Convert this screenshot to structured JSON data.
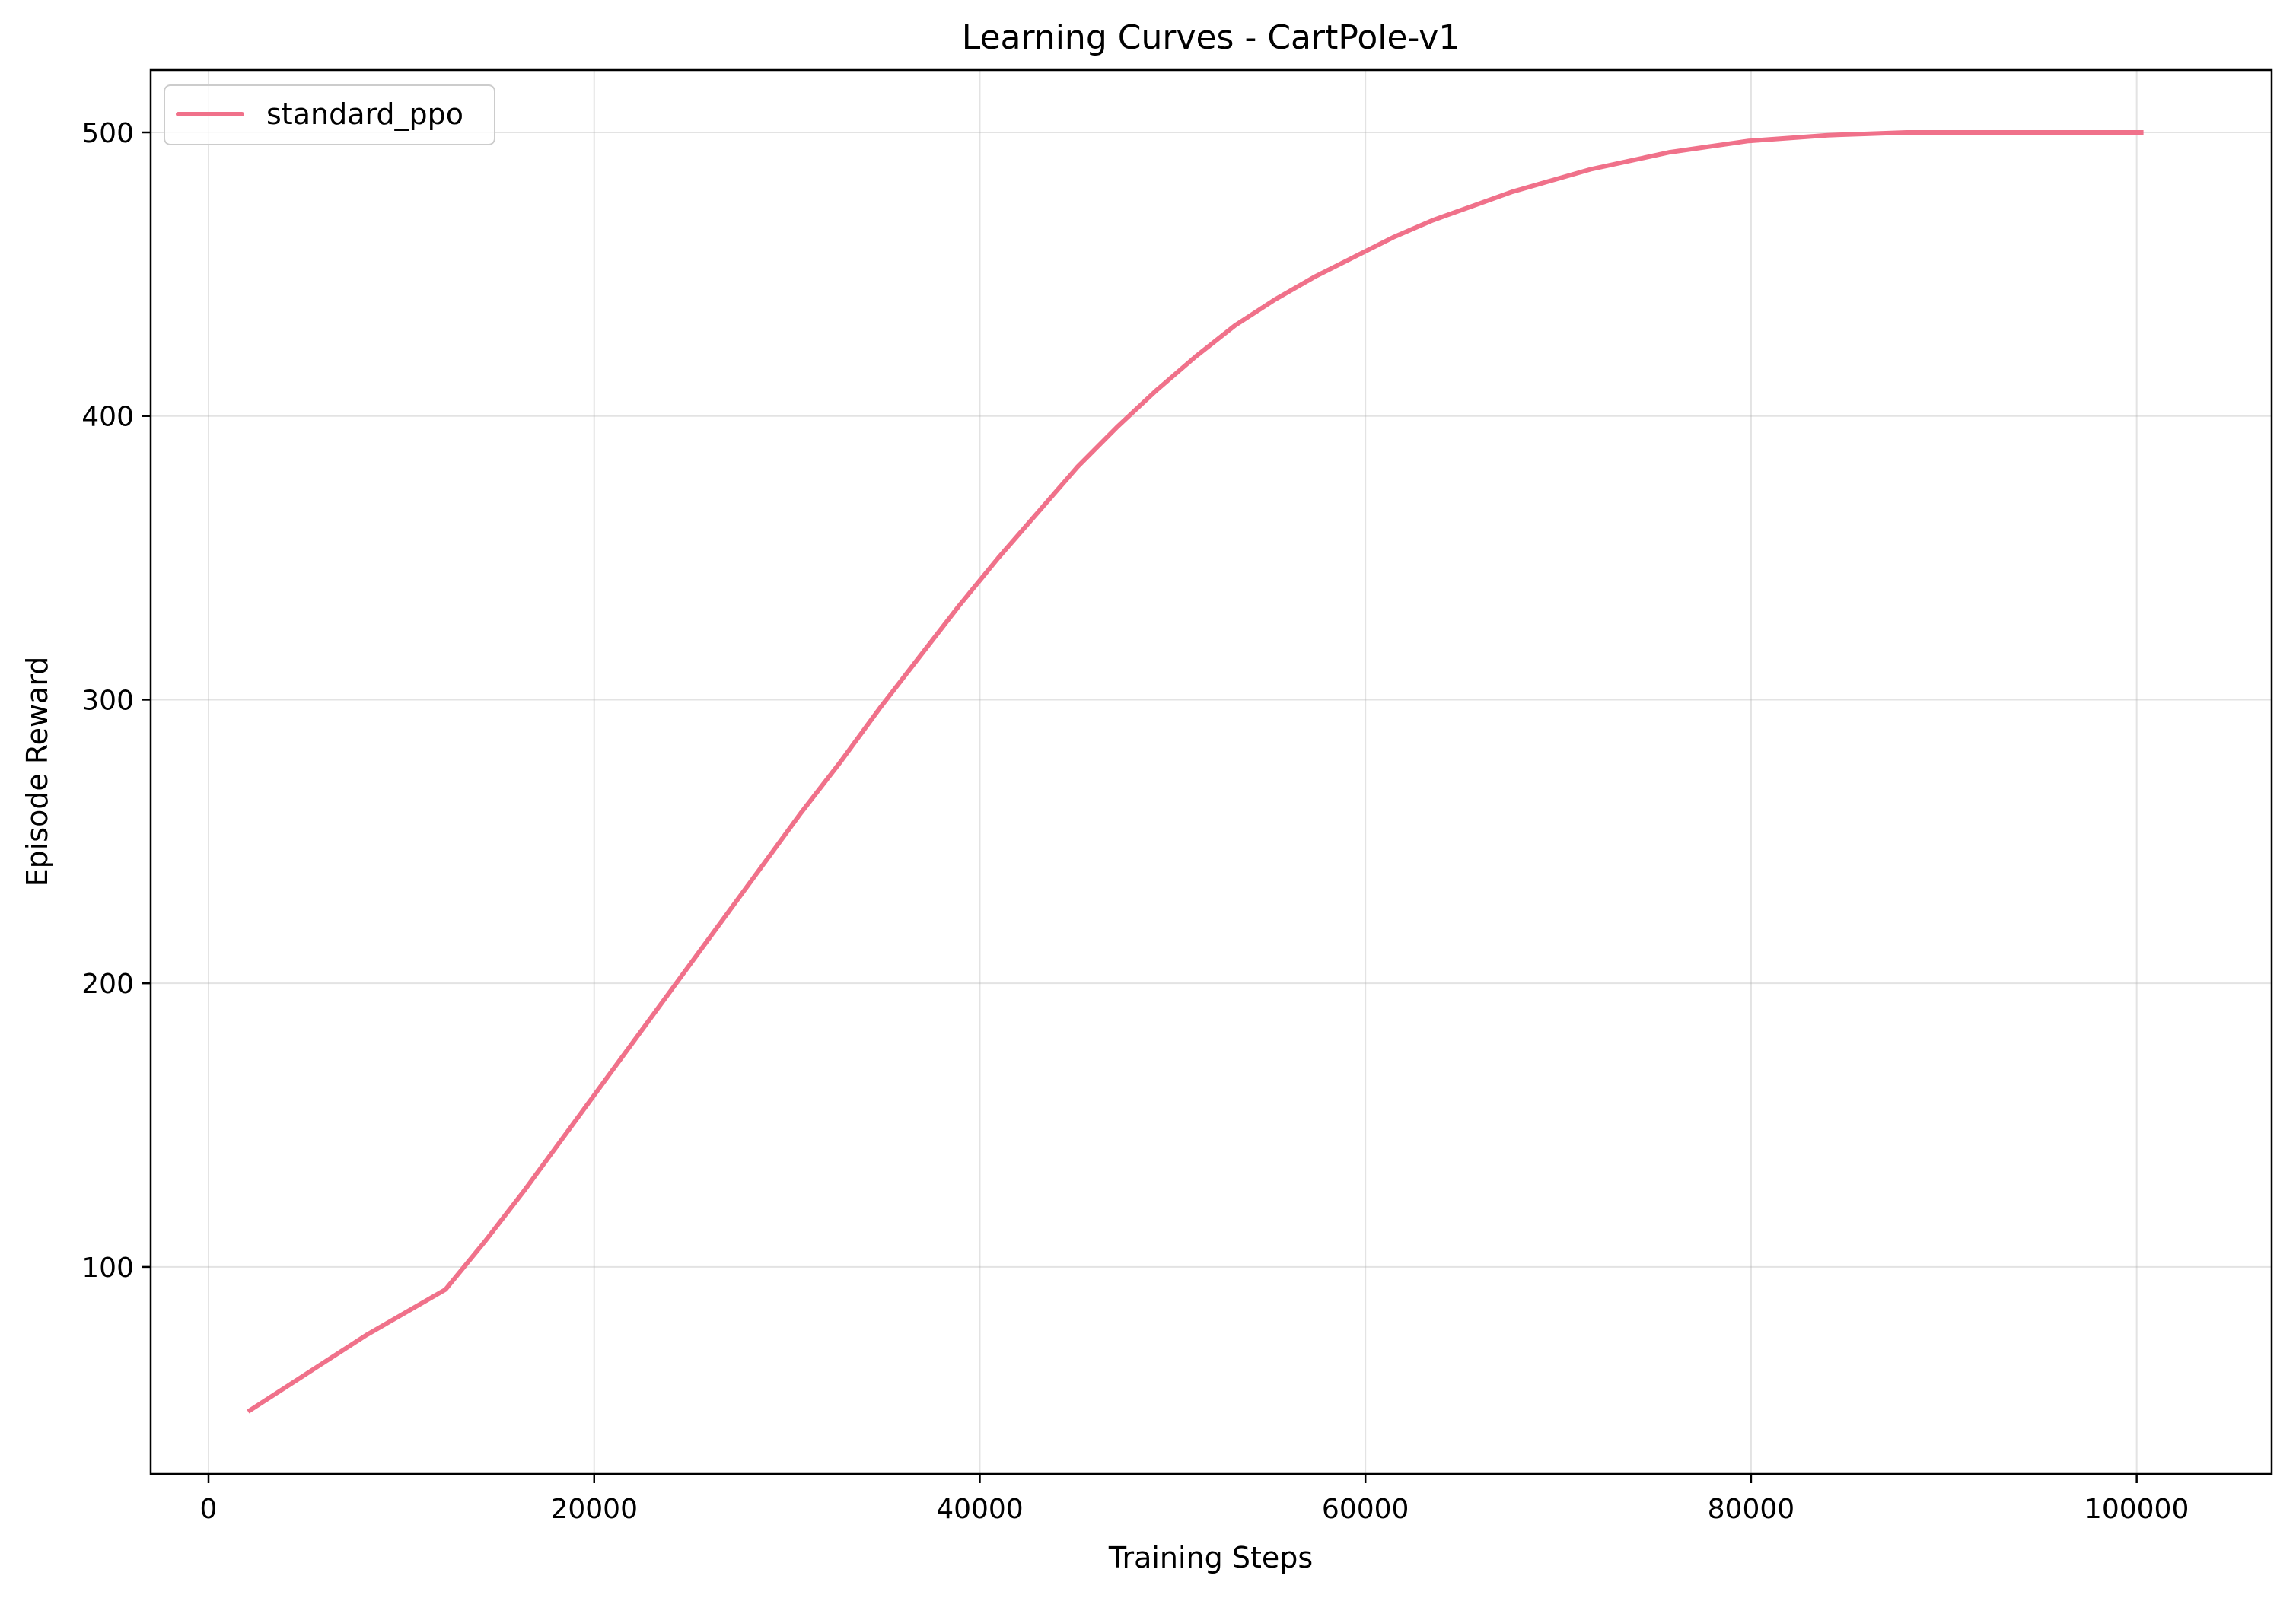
{
  "chart_data": {
    "type": "line",
    "title": "Learning Curves - CartPole-v1",
    "xlabel": "Training Steps",
    "ylabel": "Episode Reward",
    "xlim": [
      -3000,
      107000
    ],
    "ylim": [
      27,
      522
    ],
    "xticks": [
      0,
      20000,
      40000,
      60000,
      80000,
      100000
    ],
    "xtick_labels": [
      "0",
      "20000",
      "40000",
      "60000",
      "80000",
      "100000"
    ],
    "yticks": [
      100,
      200,
      300,
      400,
      500
    ],
    "ytick_labels": [
      "100",
      "200",
      "300",
      "400",
      "500"
    ],
    "grid": true,
    "legend_position": "top-left",
    "series": [
      {
        "name": "standard_ppo",
        "color": "#f0718a",
        "x": [
          2048,
          4096,
          6144,
          8192,
          10240,
          12288,
          14336,
          16384,
          18432,
          20480,
          22528,
          24576,
          26624,
          28672,
          30720,
          32768,
          34816,
          36864,
          38912,
          40960,
          43008,
          45056,
          47104,
          49152,
          51200,
          53248,
          55296,
          57344,
          59392,
          61440,
          63488,
          65536,
          67584,
          69632,
          71680,
          73728,
          75776,
          77824,
          79872,
          81920,
          83968,
          86016,
          88064,
          90112,
          92160,
          94208,
          96256,
          98304,
          100352
        ],
        "y": [
          49,
          58,
          67,
          76,
          84,
          92,
          109,
          127,
          146,
          165,
          184,
          203,
          222,
          241,
          260,
          278,
          297,
          315,
          333,
          350,
          366,
          382,
          396,
          409,
          421,
          432,
          441,
          449,
          456,
          463,
          469,
          474,
          479,
          483,
          487,
          490,
          493,
          495,
          497,
          498,
          499,
          499.5,
          500,
          500,
          500,
          500,
          500,
          500,
          500
        ]
      }
    ]
  }
}
